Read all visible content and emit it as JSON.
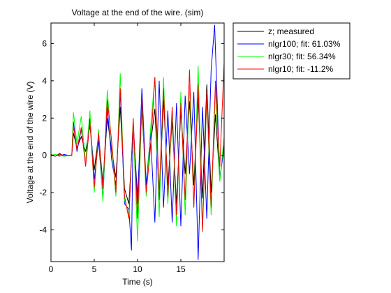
{
  "chart_data": {
    "type": "line",
    "title": "Voltage at the end of the wire. (sim)",
    "xlabel": "Time (s)",
    "ylabel": "Voltage at the end of the wire (V)",
    "xlim": [
      0,
      20
    ],
    "ylim": [
      -5.7,
      7.1
    ],
    "xticks": [
      0,
      5,
      10,
      15
    ],
    "yticks": [
      -4,
      -2,
      0,
      2,
      4,
      6
    ],
    "grid": false,
    "legend_position": "outside-top-right",
    "series": [
      {
        "name": "z; measured",
        "color": "#000000",
        "x": [
          0,
          0.5,
          1.0,
          1.5,
          2.0,
          2.4,
          2.6,
          3.0,
          3.5,
          4.0,
          4.5,
          5.0,
          5.5,
          6.0,
          6.5,
          7.0,
          7.5,
          8.0,
          8.5,
          9.0,
          9.5,
          10.0,
          10.5,
          11.0,
          11.5,
          12.0,
          12.5,
          13.0,
          13.5,
          14.0,
          14.5,
          15.0,
          15.5,
          16.0,
          16.5,
          17.0,
          17.5,
          18.0,
          18.5,
          19.0,
          19.5,
          20.0
        ],
        "y": [
          0.05,
          -0.05,
          0.1,
          -0.05,
          0.0,
          0.0,
          1.2,
          0.4,
          1.0,
          0.2,
          1.6,
          -0.8,
          1.1,
          -1.5,
          2.0,
          0.3,
          -1.2,
          2.6,
          -1.8,
          -2.6,
          1.5,
          -2.2,
          2.4,
          -1.6,
          0.6,
          2.5,
          -2.4,
          3.0,
          -1.6,
          1.8,
          -2.6,
          2.4,
          -1.0,
          2.9,
          -1.6,
          3.1,
          -2.3,
          3.8,
          -2.0,
          2.2,
          -1.3,
          0.6
        ]
      },
      {
        "name": "nlgr100; fit: 61.03%",
        "color": "#0000ff",
        "x": [
          0,
          0.5,
          1.0,
          1.5,
          2.0,
          2.4,
          2.6,
          3.0,
          3.5,
          4.0,
          4.5,
          5.0,
          5.5,
          6.0,
          6.5,
          7.0,
          7.5,
          8.0,
          8.5,
          9.0,
          9.3,
          9.5,
          10.0,
          10.5,
          11.0,
          11.5,
          12.0,
          12.5,
          13.0,
          13.5,
          14.0,
          14.5,
          15.0,
          15.5,
          16.0,
          16.5,
          17.0,
          17.5,
          18.0,
          18.5,
          18.9,
          19.5,
          20.0
        ],
        "y": [
          0.0,
          0.05,
          -0.05,
          0.05,
          0.0,
          0.0,
          1.8,
          0.2,
          1.4,
          -0.4,
          2.0,
          -1.3,
          0.8,
          -2.3,
          2.6,
          -0.2,
          -1.6,
          3.4,
          -2.6,
          -2.9,
          -5.1,
          1.8,
          -2.6,
          3.6,
          -1.6,
          1.2,
          -3.6,
          4.0,
          -2.8,
          2.4,
          -3.6,
          2.8,
          -3.8,
          3.2,
          -1.0,
          3.4,
          -5.6,
          2.6,
          -3.4,
          4.6,
          7.0,
          -1.2,
          0.4
        ]
      },
      {
        "name": "nlgr30; fit: 56.34%",
        "color": "#00ff00",
        "x": [
          0,
          0.5,
          1.0,
          1.5,
          2.0,
          2.4,
          2.6,
          3.0,
          3.5,
          4.0,
          4.5,
          5.0,
          5.5,
          6.0,
          6.5,
          7.0,
          7.5,
          8.0,
          8.5,
          9.0,
          9.5,
          10.0,
          10.5,
          11.0,
          11.5,
          12.0,
          12.5,
          13.0,
          13.5,
          14.0,
          14.5,
          15.0,
          15.5,
          16.0,
          16.5,
          17.0,
          17.5,
          18.0,
          18.5,
          19.0,
          19.5,
          20.0
        ],
        "y": [
          0.0,
          0.05,
          0.0,
          -0.05,
          0.0,
          0.0,
          2.3,
          0.6,
          2.1,
          -0.4,
          2.4,
          -2.0,
          1.4,
          -2.5,
          3.5,
          0.6,
          -2.2,
          4.4,
          -2.4,
          -3.2,
          1.8,
          -4.6,
          2.8,
          -2.2,
          1.4,
          4.2,
          -3.3,
          4.2,
          -2.6,
          2.4,
          -3.8,
          3.4,
          -3.2,
          3.8,
          -2.8,
          4.8,
          -4.0,
          3.2,
          -3.2,
          3.6,
          -1.4,
          1.0
        ]
      },
      {
        "name": "nlgr10; fit: -11.2%",
        "color": "#ff0000",
        "x": [
          0,
          0.5,
          1.0,
          1.5,
          2.0,
          2.4,
          2.6,
          3.0,
          3.5,
          4.0,
          4.5,
          5.0,
          5.5,
          6.0,
          6.5,
          7.0,
          7.5,
          8.0,
          8.5,
          9.0,
          9.5,
          10.0,
          10.5,
          11.0,
          11.5,
          12.0,
          12.5,
          13.0,
          13.5,
          14.0,
          14.5,
          15.0,
          15.5,
          16.0,
          16.5,
          17.0,
          17.5,
          18.0,
          18.5,
          19.0,
          19.5,
          20.0
        ],
        "y": [
          0.0,
          -0.05,
          0.05,
          0.0,
          0.0,
          0.0,
          1.6,
          0.3,
          1.5,
          -0.6,
          1.8,
          -1.7,
          1.2,
          -1.8,
          3.0,
          0.8,
          -2.0,
          3.6,
          -2.2,
          -3.4,
          2.0,
          -3.4,
          3.0,
          -2.0,
          0.4,
          4.2,
          -2.0,
          3.6,
          -2.2,
          2.6,
          -3.2,
          2.8,
          -2.4,
          4.6,
          -2.8,
          3.8,
          -4.1,
          3.4,
          -2.8,
          4.0,
          -0.6,
          5.0
        ]
      }
    ]
  }
}
